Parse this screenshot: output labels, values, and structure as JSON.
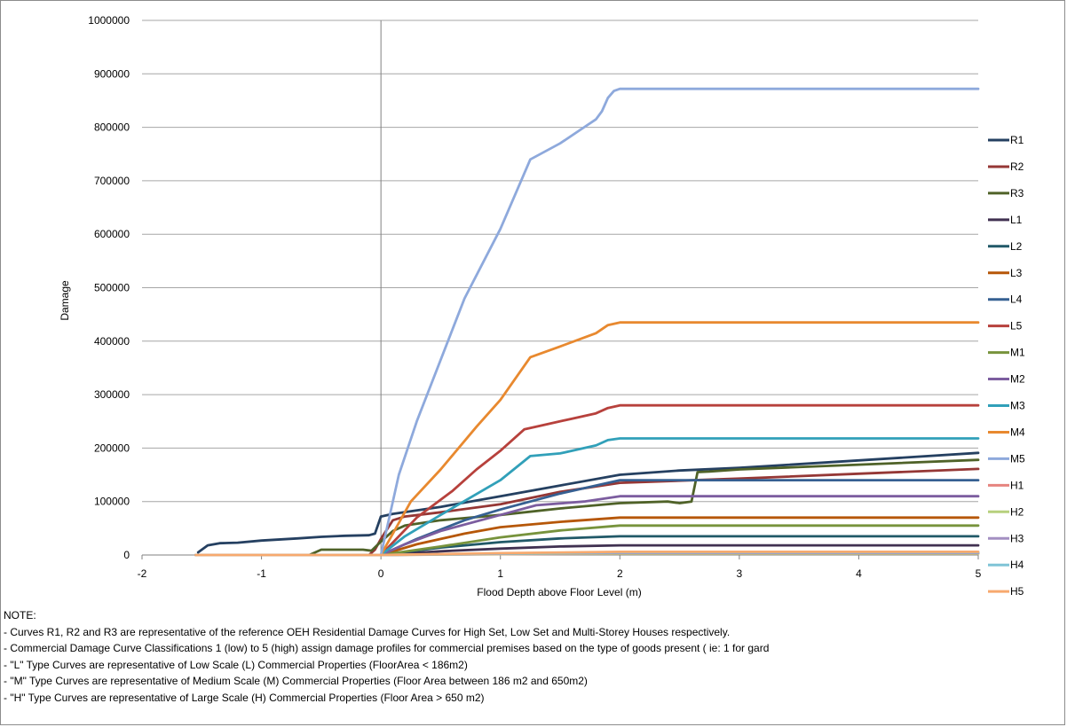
{
  "chart_data": {
    "type": "line",
    "xlabel": "Flood Depth above Floor Level (m)",
    "ylabel": "Damage",
    "xlim": [
      -2,
      5
    ],
    "ylim": [
      0,
      1000000
    ],
    "xticks": [
      "-2",
      "-1",
      "0",
      "1",
      "2",
      "3",
      "4",
      "5"
    ],
    "yticks": [
      "0",
      "100000",
      "200000",
      "300000",
      "400000",
      "500000",
      "600000",
      "700000",
      "800000",
      "900000",
      "1000000"
    ],
    "grid": "horizontal",
    "legend_position": "right",
    "series": [
      {
        "name": "R1",
        "color": "#254061",
        "points": [
          [
            -1.53,
            5000
          ],
          [
            -1.45,
            18000
          ],
          [
            -1.35,
            22000
          ],
          [
            -1.2,
            23000
          ],
          [
            -1.0,
            27000
          ],
          [
            -0.7,
            31000
          ],
          [
            -0.5,
            34000
          ],
          [
            -0.3,
            36000
          ],
          [
            -0.1,
            37000
          ],
          [
            -0.05,
            40000
          ],
          [
            0,
            72000
          ],
          [
            0.1,
            77000
          ],
          [
            0.5,
            90000
          ],
          [
            1.0,
            110000
          ],
          [
            1.5,
            130000
          ],
          [
            2.0,
            150000
          ],
          [
            2.5,
            158000
          ],
          [
            3.0,
            163000
          ],
          [
            4.0,
            177000
          ],
          [
            5.0,
            191000
          ]
        ]
      },
      {
        "name": "R2",
        "color": "#953735",
        "points": [
          [
            -1.55,
            0
          ],
          [
            -0.1,
            0
          ],
          [
            -0.05,
            10000
          ],
          [
            0,
            30000
          ],
          [
            0.1,
            65000
          ],
          [
            0.2,
            72000
          ],
          [
            0.5,
            80000
          ],
          [
            1.0,
            95000
          ],
          [
            1.5,
            118000
          ],
          [
            2.0,
            135000
          ],
          [
            3.0,
            143000
          ],
          [
            4.0,
            152000
          ],
          [
            5.0,
            161000
          ]
        ]
      },
      {
        "name": "R3",
        "color": "#4f6228",
        "points": [
          [
            -1.55,
            0
          ],
          [
            -0.6,
            0
          ],
          [
            -0.5,
            10000
          ],
          [
            -0.15,
            10000
          ],
          [
            -0.08,
            8000
          ],
          [
            0,
            25000
          ],
          [
            0.1,
            45000
          ],
          [
            0.2,
            55000
          ],
          [
            0.5,
            65000
          ],
          [
            1.0,
            75000
          ],
          [
            1.5,
            87000
          ],
          [
            2.0,
            97000
          ],
          [
            2.4,
            100000
          ],
          [
            2.5,
            97000
          ],
          [
            2.6,
            100000
          ],
          [
            2.65,
            155000
          ],
          [
            2.75,
            156000
          ],
          [
            3.0,
            160000
          ],
          [
            4.0,
            169000
          ],
          [
            5.0,
            178000
          ]
        ]
      },
      {
        "name": "L1",
        "color": "#403151",
        "points": [
          [
            -1.55,
            0
          ],
          [
            0,
            0
          ],
          [
            0.5,
            7000
          ],
          [
            1.0,
            12000
          ],
          [
            1.5,
            16000
          ],
          [
            2.0,
            18000
          ],
          [
            5.0,
            18000
          ]
        ]
      },
      {
        "name": "L2",
        "color": "#215968",
        "points": [
          [
            -1.55,
            0
          ],
          [
            0,
            0
          ],
          [
            0.5,
            14000
          ],
          [
            1.0,
            24000
          ],
          [
            1.5,
            31000
          ],
          [
            2.0,
            35000
          ],
          [
            5.0,
            35000
          ]
        ]
      },
      {
        "name": "L3",
        "color": "#b65708",
        "points": [
          [
            -1.55,
            0
          ],
          [
            0,
            0
          ],
          [
            0.3,
            20000
          ],
          [
            0.7,
            40000
          ],
          [
            1.0,
            52000
          ],
          [
            1.5,
            62000
          ],
          [
            2.0,
            70000
          ],
          [
            5.0,
            70000
          ]
        ]
      },
      {
        "name": "L4",
        "color": "#366092",
        "points": [
          [
            -1.55,
            0
          ],
          [
            0,
            0
          ],
          [
            0.3,
            30000
          ],
          [
            0.7,
            65000
          ],
          [
            1.0,
            85000
          ],
          [
            1.5,
            115000
          ],
          [
            2.0,
            140000
          ],
          [
            5.0,
            140000
          ]
        ]
      },
      {
        "name": "L5",
        "color": "#b7413c",
        "points": [
          [
            -1.55,
            0
          ],
          [
            0,
            0
          ],
          [
            0.3,
            70000
          ],
          [
            0.6,
            120000
          ],
          [
            0.8,
            160000
          ],
          [
            1.0,
            195000
          ],
          [
            1.2,
            235000
          ],
          [
            1.3,
            240000
          ],
          [
            1.6,
            255000
          ],
          [
            1.8,
            265000
          ],
          [
            1.9,
            275000
          ],
          [
            2.0,
            280000
          ],
          [
            5.0,
            280000
          ]
        ]
      },
      {
        "name": "M1",
        "color": "#77933c",
        "points": [
          [
            -1.55,
            0
          ],
          [
            0,
            0
          ],
          [
            0.5,
            16000
          ],
          [
            1.0,
            33000
          ],
          [
            1.5,
            46000
          ],
          [
            2.0,
            55000
          ],
          [
            5.0,
            55000
          ]
        ]
      },
      {
        "name": "M2",
        "color": "#7c5d9f",
        "points": [
          [
            -1.55,
            0
          ],
          [
            0,
            0
          ],
          [
            0.2,
            20000
          ],
          [
            0.5,
            45000
          ],
          [
            1.0,
            75000
          ],
          [
            1.3,
            93000
          ],
          [
            1.7,
            100000
          ],
          [
            2.0,
            110000
          ],
          [
            5.0,
            110000
          ]
        ]
      },
      {
        "name": "M3",
        "color": "#31a0b9",
        "points": [
          [
            -1.55,
            0
          ],
          [
            0,
            0
          ],
          [
            0.2,
            35000
          ],
          [
            0.5,
            75000
          ],
          [
            1.0,
            140000
          ],
          [
            1.25,
            185000
          ],
          [
            1.5,
            190000
          ],
          [
            1.8,
            205000
          ],
          [
            1.9,
            215000
          ],
          [
            2.0,
            218000
          ],
          [
            5.0,
            218000
          ]
        ]
      },
      {
        "name": "M4",
        "color": "#e8892f",
        "points": [
          [
            -1.55,
            0
          ],
          [
            0,
            0
          ],
          [
            0.25,
            100000
          ],
          [
            0.5,
            160000
          ],
          [
            0.8,
            240000
          ],
          [
            1.0,
            290000
          ],
          [
            1.25,
            370000
          ],
          [
            1.5,
            390000
          ],
          [
            1.8,
            415000
          ],
          [
            1.9,
            430000
          ],
          [
            2.0,
            435000
          ],
          [
            5.0,
            435000
          ]
        ]
      },
      {
        "name": "M5",
        "color": "#8ea9dc",
        "points": [
          [
            -1.55,
            0
          ],
          [
            0,
            0
          ],
          [
            0.15,
            150000
          ],
          [
            0.3,
            250000
          ],
          [
            0.7,
            480000
          ],
          [
            1.0,
            610000
          ],
          [
            1.25,
            740000
          ],
          [
            1.5,
            770000
          ],
          [
            1.7,
            800000
          ],
          [
            1.8,
            815000
          ],
          [
            1.85,
            830000
          ],
          [
            1.9,
            855000
          ],
          [
            1.95,
            868000
          ],
          [
            2.0,
            872000
          ],
          [
            5.0,
            872000
          ]
        ]
      },
      {
        "name": "H1",
        "color": "#e6847f",
        "points": [
          [
            -1.55,
            0
          ],
          [
            0,
            0
          ],
          [
            1.0,
            1500
          ],
          [
            2.0,
            2500
          ],
          [
            5.0,
            2500
          ]
        ]
      },
      {
        "name": "H2",
        "color": "#b7d07d",
        "points": [
          [
            -1.55,
            0
          ],
          [
            0,
            0
          ],
          [
            1.0,
            2000
          ],
          [
            2.0,
            3000
          ],
          [
            5.0,
            3000
          ]
        ]
      },
      {
        "name": "H3",
        "color": "#a48fc2",
        "points": [
          [
            -1.55,
            0
          ],
          [
            0,
            0
          ],
          [
            1.0,
            2500
          ],
          [
            2.0,
            4000
          ],
          [
            5.0,
            4000
          ]
        ]
      },
      {
        "name": "H4",
        "color": "#7fc4d6",
        "points": [
          [
            -1.55,
            0
          ],
          [
            0,
            0
          ],
          [
            1.0,
            3000
          ],
          [
            2.0,
            5000
          ],
          [
            5.0,
            5000
          ]
        ]
      },
      {
        "name": "H5",
        "color": "#f7a96e",
        "points": [
          [
            -1.55,
            0
          ],
          [
            0,
            0
          ],
          [
            1.0,
            3500
          ],
          [
            2.0,
            6000
          ],
          [
            5.0,
            6000
          ]
        ]
      }
    ]
  },
  "notes": {
    "heading": "NOTE:",
    "lines": [
      "- Curves R1, R2 and R3 are representative of the reference OEH Residential Damage Curves  for High Set, Low Set and Multi-Storey Houses respectively.",
      "- Commercial Damage Curve Classifications 1 (low) to 5 (high) assign damage profiles for commercial premises based on the type of goods  present ( ie: 1 for gard",
      "-  \"L\" Type Curves are representative of  Low Scale  (L) Commercial Properties (FloorArea < 186m2)",
      "- \"M\" Type Curves are representative of  Medium Scale  (M) Commercial Properties (Floor Area  between 186 m2 and 650m2)",
      "- \"H\" Type Curves are representative of Large  Scale (H) Commercial Properties (Floor Area > 650 m2)"
    ]
  }
}
